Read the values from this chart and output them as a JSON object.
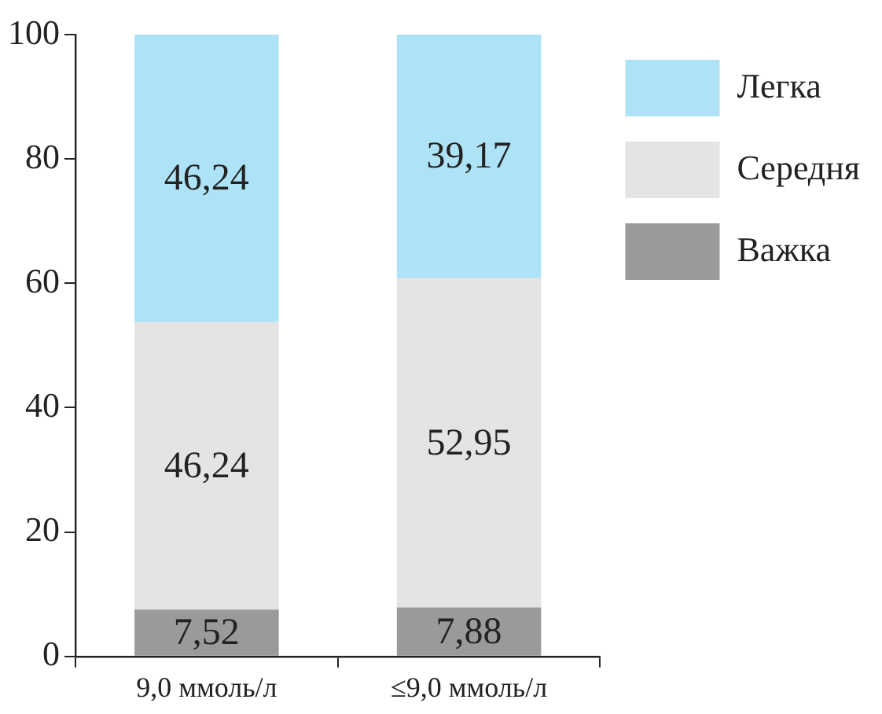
{
  "chart_data": {
    "type": "bar",
    "stacked": true,
    "categories": [
      "9,0 ммоль/л",
      "≤9,0 ммоль/л"
    ],
    "series": [
      {
        "name": "Важка",
        "color": "#9a9a9c",
        "values": [
          7.52,
          7.88
        ],
        "value_labels": [
          "7,52",
          "7,88"
        ]
      },
      {
        "name": "Середня",
        "color": "#e4e4e4",
        "values": [
          46.24,
          52.95
        ],
        "value_labels": [
          "46,24",
          "52,95"
        ]
      },
      {
        "name": "Легка",
        "color": "#aee3f7",
        "values": [
          46.24,
          39.17
        ],
        "value_labels": [
          "46,24",
          "39,17"
        ]
      }
    ],
    "ylim": [
      0,
      100
    ],
    "yticks": [
      0,
      20,
      40,
      60,
      80,
      100
    ],
    "grid": false,
    "legend": "right"
  }
}
